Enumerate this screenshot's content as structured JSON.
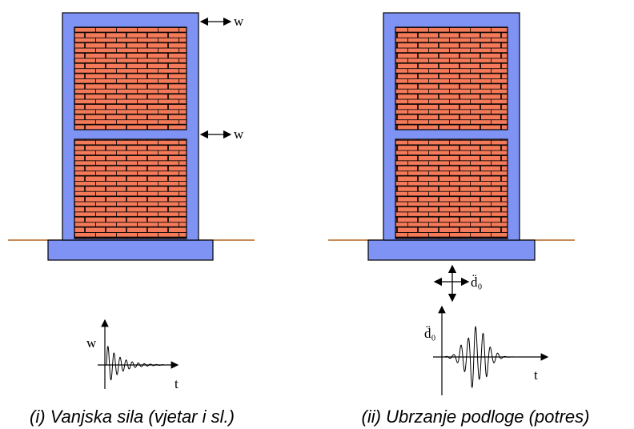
{
  "colors": {
    "frame": "#7f93f4",
    "brick": "#f47a5a",
    "mortar": "#000000",
    "ground": "#b5651d"
  },
  "left_panel": {
    "force_label_top": "w",
    "force_label_mid": "w",
    "graph_ylabel": "w",
    "graph_xlabel": "t",
    "caption": "(i) Vanjska sila (vjetar i sl.)"
  },
  "right_panel": {
    "accel_label": "d̈₀",
    "graph_ylabel": "d̈₀",
    "graph_xlabel": "t",
    "caption": "(ii) Ubrzanje podloge (potres)"
  }
}
